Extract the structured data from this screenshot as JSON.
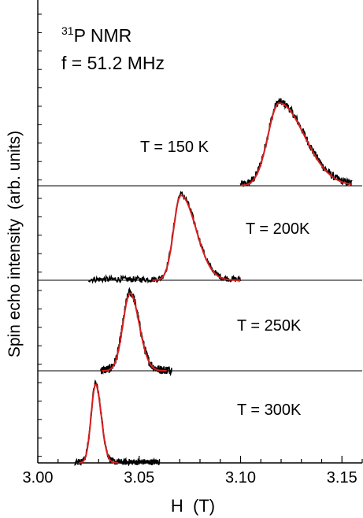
{
  "chart_data": {
    "type": "line",
    "title_line1_sup": "31",
    "title_line1": "P NMR",
    "title_line2": "f = 51.2 MHz",
    "xlabel": "H  (T)",
    "ylabel": "Spin echo intensity  (arb. units)",
    "xlim": [
      3.0,
      3.16
    ],
    "x_ticks": [
      3.0,
      3.05,
      3.1,
      3.15
    ],
    "x_tick_labels": [
      "3.00",
      "3.05",
      "3.10",
      "3.15"
    ],
    "grid": false,
    "colors": {
      "data": "#000000",
      "fit": "#d81e1e",
      "axis": "#000000"
    },
    "panels": [
      {
        "label": "T = 150 K",
        "x_range": [
          3.1,
          3.155
        ],
        "peak_x": 3.119,
        "peak_height": 0.75,
        "width_left": 0.0055,
        "width_right": 0.0125,
        "noise": 0.035,
        "has_baseline": true
      },
      {
        "label": "T = 200K",
        "x_range": [
          3.025,
          3.1
        ],
        "peak_x": 3.0705,
        "peak_height": 0.87,
        "width_left": 0.0035,
        "width_right": 0.0075,
        "noise": 0.03,
        "has_baseline": true
      },
      {
        "label": "T = 250K",
        "x_range": [
          3.031,
          3.066
        ],
        "peak_x": 3.0455,
        "peak_height": 0.88,
        "width_left": 0.0035,
        "width_right": 0.0045,
        "noise": 0.05,
        "has_baseline": true
      },
      {
        "label": "T = 300K",
        "x_range": [
          3.018,
          3.06
        ],
        "peak_x": 3.0285,
        "peak_height": 0.88,
        "width_left": 0.0022,
        "width_right": 0.0028,
        "noise": 0.035,
        "has_baseline": false
      }
    ]
  }
}
